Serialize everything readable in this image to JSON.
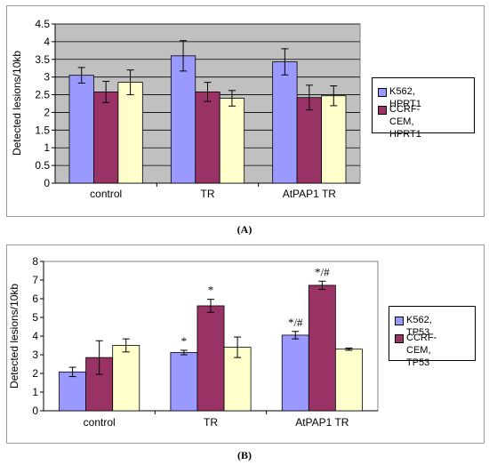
{
  "chart_data": [
    {
      "type": "bar",
      "panel_label": "(A)",
      "ylabel": "Detected lesions/10kb",
      "ylim": [
        0,
        4.5
      ],
      "yticks": [
        "0",
        "0.5",
        "1",
        "1.5",
        "2",
        "2.5",
        "3",
        "3.5",
        "4",
        "4.5"
      ],
      "ytick_values": [
        0,
        0.5,
        1,
        1.5,
        2,
        2.5,
        3,
        3.5,
        4,
        4.5
      ],
      "categories": [
        "control",
        "TR",
        "AtPAP1 TR"
      ],
      "series": [
        {
          "name": "K562, HPRT1",
          "values": [
            3.05,
            3.6,
            3.43
          ],
          "errors": [
            0.22,
            0.43,
            0.37
          ]
        },
        {
          "name": "CCRF-CEM, HPRT1",
          "values": [
            2.58,
            2.58,
            2.42
          ],
          "errors": [
            0.3,
            0.27,
            0.35
          ]
        },
        {
          "name": "",
          "values": [
            2.85,
            2.4,
            2.47
          ],
          "errors": [
            0.35,
            0.22,
            0.28
          ]
        }
      ],
      "annotations": [],
      "legend_position": "right",
      "grid": true,
      "plot_background": "#c0c0c0",
      "colors": [
        "#9999ff",
        "#993366",
        "#ffffcc"
      ]
    },
    {
      "type": "bar",
      "panel_label": "(B)",
      "ylabel": "Detected lesions/10kb",
      "ylim": [
        0,
        8
      ],
      "yticks": [
        "0",
        "1",
        "2",
        "3",
        "4",
        "5",
        "6",
        "7",
        "8"
      ],
      "ytick_values": [
        0,
        1,
        2,
        3,
        4,
        5,
        6,
        7,
        8
      ],
      "categories": [
        "control",
        "TR",
        "AtPAP1 TR"
      ],
      "series": [
        {
          "name": "K562, TP53",
          "values": [
            2.08,
            3.12,
            4.05
          ],
          "errors": [
            0.25,
            0.12,
            0.2
          ]
        },
        {
          "name": "CCRF-CEM, TP53",
          "values": [
            2.85,
            5.62,
            6.72
          ],
          "errors": [
            0.9,
            0.35,
            0.22
          ]
        },
        {
          "name": "",
          "values": [
            3.5,
            3.4,
            3.3
          ],
          "errors": [
            0.35,
            0.55,
            0.06
          ]
        }
      ],
      "annotations": [
        {
          "category": "TR",
          "series": 0,
          "text": "*"
        },
        {
          "category": "TR",
          "series": 1,
          "text": "*"
        },
        {
          "category": "AtPAP1 TR",
          "series": 0,
          "text": "*/#"
        },
        {
          "category": "AtPAP1 TR",
          "series": 1,
          "text": "*/#"
        }
      ],
      "legend_position": "right",
      "grid": false,
      "plot_background": "#ffffff",
      "colors": [
        "#9999ff",
        "#993366",
        "#ffffcc"
      ]
    }
  ],
  "legends": [
    {
      "items": [
        {
          "label": "K562, HPRT1",
          "color": "#9999ff"
        },
        {
          "label": "CCRF-CEM,\nHPRT1",
          "color": "#993366"
        }
      ]
    },
    {
      "items": [
        {
          "label": "K562, TP53",
          "color": "#9999ff"
        },
        {
          "label": "CCRF-CEM,\nTP53",
          "color": "#993366"
        }
      ]
    }
  ]
}
